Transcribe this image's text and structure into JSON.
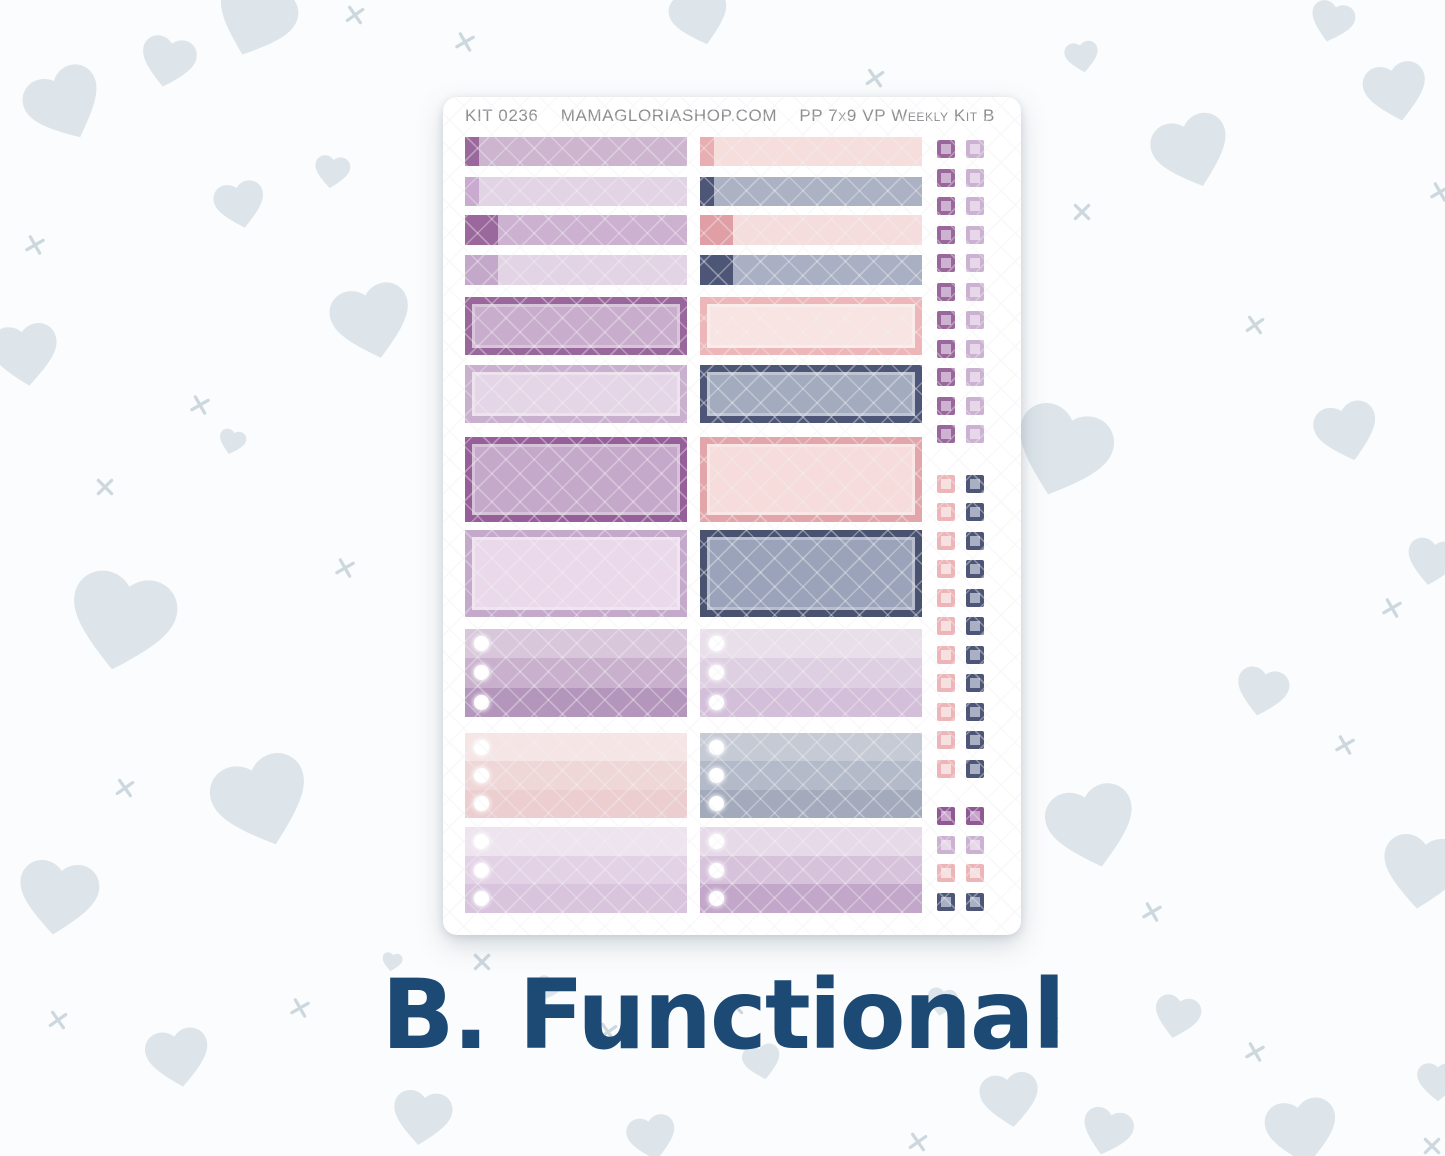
{
  "page": {
    "caption": "B. Functional",
    "caption_color": "#1c4a74",
    "background_color": "#fbfcfd",
    "heart_color": "#dde5ea",
    "cross_color": "#cdd8de"
  },
  "sheet": {
    "header": {
      "kit_number": "KIT 0236",
      "shop_url": "MAMAGLORIASHOP.COM",
      "kit_name": "PP 7x9 VP Weekly Kit B",
      "text_color": "#8d8e90"
    },
    "bars": {
      "left": [
        {
          "accent": "#9a689c",
          "accent_width": 14,
          "body": "#cdb5d0"
        },
        {
          "accent": "#c8abce",
          "accent_width": 14,
          "body": "#e3d4e5"
        },
        {
          "accent": "#9a689c",
          "accent_width": 33,
          "body": "#ccb2d0"
        },
        {
          "accent": "#c4a8ca",
          "accent_width": 33,
          "body": "#e3d4e5"
        }
      ],
      "right": [
        {
          "accent": "#e9aeb2",
          "accent_width": 14,
          "body": "#f6dedd"
        },
        {
          "accent": "#4e5677",
          "accent_width": 14,
          "body": "#abb2c4"
        },
        {
          "accent": "#df9fa5",
          "accent_width": 33,
          "body": "#f5dddd"
        },
        {
          "accent": "#4e5677",
          "accent_width": 33,
          "body": "#a9b0c3"
        }
      ]
    },
    "boxes": {
      "left": [
        {
          "border": "#9a679c",
          "fill": "#c8adcc"
        },
        {
          "border": "#c9b0cf",
          "fill": "#e5d6e7"
        },
        {
          "border": "#975f9a",
          "fill": "#c5a9ca"
        },
        {
          "border": "#c4a9cb",
          "fill": "#ead9eb"
        }
      ],
      "right": [
        {
          "border": "#edb6b8",
          "fill": "#f8e4e3"
        },
        {
          "border": "#4d5676",
          "fill": "#a3abbf"
        },
        {
          "border": "#e2a6aa",
          "fill": "#f6dcda"
        },
        {
          "border": "#495370",
          "fill": "#9aa3b9"
        }
      ]
    },
    "checklists": {
      "left": [
        {
          "stripes": [
            "#d8c6db",
            "#c9b1cd",
            "#b495bc"
          ]
        },
        {
          "stripes": [
            "#f6e5e5",
            "#f0d7d7",
            "#ecced0"
          ]
        },
        {
          "stripes": [
            "#eee4ef",
            "#e3d2e6",
            "#d8c4dd"
          ]
        }
      ],
      "right": [
        {
          "stripes": [
            "#e9dfeb",
            "#ded0e2",
            "#d3bfd9"
          ]
        },
        {
          "stripes": [
            "#c5cad5",
            "#b3bac9",
            "#a2aabc"
          ]
        },
        {
          "stripes": [
            "#e7dae8",
            "#d7c2db",
            "#c3a7ca"
          ]
        }
      ]
    },
    "square_strip": {
      "sections": [
        {
          "rows": 11,
          "left": {
            "border": "#99679c",
            "fill": "#cdb3d1"
          },
          "right": {
            "border": "#ccb2d2",
            "fill": "#e7d8e9"
          }
        },
        {
          "rows": 11,
          "left": {
            "border": "#edb5b7",
            "fill": "#f7e0e0"
          },
          "right": {
            "border": "#4d5676",
            "fill": "#a9b0c3"
          }
        },
        {
          "rows": 1,
          "left": {
            "border": "#8f5a94",
            "fill": "#c8a2cc"
          },
          "right": {
            "border": "#8f5a94",
            "fill": "#c8a2cc"
          }
        },
        {
          "rows": 1,
          "left": {
            "border": "#ccb2d2",
            "fill": "#e7d8e9"
          },
          "right": {
            "border": "#ccb2d2",
            "fill": "#e7d8e9"
          }
        },
        {
          "rows": 1,
          "left": {
            "border": "#edb5b7",
            "fill": "#f7e0e0"
          },
          "right": {
            "border": "#edb5b7",
            "fill": "#f7e0e0"
          }
        },
        {
          "rows": 1,
          "left": {
            "border": "#4d5676",
            "fill": "#a9b0c3"
          },
          "right": {
            "border": "#4d5676",
            "fill": "#a9b0c3"
          }
        }
      ]
    }
  }
}
